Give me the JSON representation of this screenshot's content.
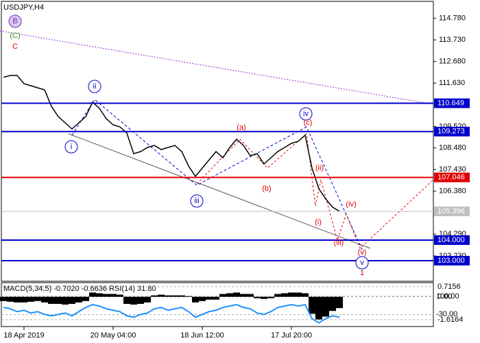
{
  "chart_data": [
    {
      "type": "line",
      "title": "USDJPY,H4",
      "categories": [
        null,
        null,
        null,
        "18 Apr 2019",
        null,
        null,
        null,
        null,
        null,
        null,
        null,
        null,
        null,
        null,
        null,
        null,
        "20 May 04:00",
        null,
        null,
        null,
        null,
        null,
        null,
        null,
        null,
        null,
        null,
        null,
        null,
        "18 Jun 12:00",
        null,
        null,
        null,
        null,
        null,
        null,
        null,
        null,
        null,
        null,
        null,
        null,
        "17 Jul 20:00",
        null,
        null,
        null,
        null,
        null,
        null,
        null
      ],
      "values": [
        111.91,
        112.0,
        112.0,
        111.6,
        111.5,
        111.4,
        111.3,
        110.5,
        110.0,
        109.7,
        109.4,
        109.7,
        110.0,
        110.7,
        110.4,
        109.9,
        109.6,
        109.5,
        109.2,
        108.2,
        108.3,
        108.5,
        108.6,
        108.4,
        108.5,
        108.6,
        108.3,
        107.6,
        107.1,
        107.5,
        107.9,
        108.3,
        108.0,
        108.5,
        108.9,
        108.6,
        108.1,
        108.2,
        107.7,
        108.0,
        108.3,
        108.5,
        108.7,
        108.8,
        109.1,
        107.5,
        106.5,
        106.0,
        105.6,
        105.4
      ],
      "color": "#000000",
      "ylim": [
        102.0,
        115.6
      ],
      "yticks": [
        {
          "value": 114.78,
          "label": "114.780"
        },
        {
          "value": 113.73,
          "label": "113.730"
        },
        {
          "value": 112.68,
          "label": "112.680"
        },
        {
          "value": 111.63,
          "label": "111.630"
        },
        {
          "value": 109.52,
          "label": "109.520"
        },
        {
          "value": 108.48,
          "label": "108.480"
        },
        {
          "value": 107.43,
          "label": "107.430"
        },
        {
          "value": 106.38,
          "label": "106.380"
        },
        {
          "value": 104.29,
          "label": "104.290"
        },
        {
          "value": 103.23,
          "label": "103.230"
        }
      ],
      "levels": [
        {
          "value": 110.649,
          "label": "110.649",
          "color": "#0000cc"
        },
        {
          "value": 109.273,
          "label": "109.273",
          "color": "#0000cc"
        },
        {
          "value": 107.046,
          "label": "107.046",
          "color": "#e00000"
        },
        {
          "value": 105.396,
          "label": "105.396",
          "color": "#c0c0c0"
        },
        {
          "value": 104.0,
          "label": "104.000",
          "color": "#0000cc"
        },
        {
          "value": 103.0,
          "label": "103.000",
          "color": "#0000cc"
        }
      ],
      "annotations": [
        {
          "text": "B",
          "color": "#7b2cbf"
        },
        {
          "text": "(C)",
          "color": "#2e8b2e"
        },
        {
          "text": "C",
          "color": "#e00000"
        },
        {
          "text": "ii",
          "color": "#0000cc"
        },
        {
          "text": "i",
          "color": "#0000cc"
        },
        {
          "text": "iii",
          "color": "#0000cc"
        },
        {
          "text": "iv",
          "color": "#0000cc"
        },
        {
          "text": "v",
          "color": "#0000cc"
        },
        {
          "text": "1",
          "color": "#e00000"
        },
        {
          "text": "(a)",
          "color": "#e00000"
        },
        {
          "text": "(b)",
          "color": "#e00000"
        },
        {
          "text": "(c)",
          "color": "#e00000"
        },
        {
          "text": "(ii)",
          "color": "#e00000"
        },
        {
          "text": "(i)",
          "color": "#e00000"
        },
        {
          "text": "(iii)",
          "color": "#e00000"
        },
        {
          "text": "(iv)",
          "color": "#e00000"
        },
        {
          "text": "(v)",
          "color": "#e00000"
        }
      ]
    },
    {
      "type": "bar",
      "title": "MACD(5,34,5) -0.7020 -0.6636 RSI(14) 31.80",
      "values": [
        -0.3,
        -0.35,
        -0.4,
        -0.4,
        -0.35,
        -0.3,
        -0.4,
        -0.5,
        -0.5,
        -0.55,
        -0.5,
        -0.4,
        -0.3,
        0.3,
        0.25,
        0.2,
        0.2,
        0.15,
        -0.5,
        -0.55,
        -0.5,
        -0.4,
        0.1,
        0.15,
        0.1,
        0.1,
        0.1,
        0.05,
        -0.4,
        -0.3,
        -0.2,
        -0.2,
        0.2,
        0.25,
        0.3,
        0.2,
        0.2,
        -0.1,
        -0.15,
        -0.1,
        0.2,
        0.25,
        0.3,
        0.3,
        0.25,
        -1.2,
        -1.6,
        -1.4,
        -1.0,
        -0.8
      ],
      "color": "#000000",
      "ylim": [
        -2.1,
        1.0
      ],
      "yticks": [
        {
          "value": 0.7156,
          "label": "0.7156"
        },
        {
          "value": 0,
          "label": "0.00"
        },
        {
          "value": -1.6164,
          "label": "-1.6164"
        }
      ],
      "y2lim": [
        -116.7,
        197.5
      ],
      "y2ticks": [
        {
          "value": 100,
          "label": "100.00"
        },
        {
          "value": -30,
          "label": "-30.00"
        }
      ],
      "rsi": {
        "color": "#1e90ff",
        "values": [
          20,
          10,
          -10,
          0,
          -20,
          -10,
          -30,
          -40,
          -30,
          -20,
          -40,
          -10,
          20,
          40,
          30,
          10,
          0,
          -10,
          -40,
          -50,
          -30,
          -20,
          10,
          20,
          0,
          10,
          20,
          -10,
          -50,
          -30,
          -10,
          0,
          20,
          30,
          40,
          20,
          10,
          -20,
          -30,
          -10,
          20,
          30,
          40,
          30,
          40,
          -60,
          -90,
          -60,
          -40,
          -50
        ]
      }
    }
  ]
}
